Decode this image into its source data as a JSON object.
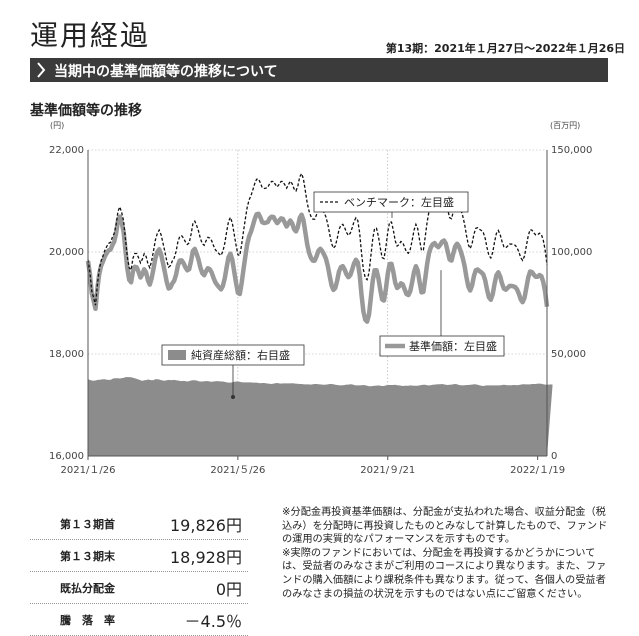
{
  "header": {
    "title": "運用経過",
    "period": "第13期：2021年１月27日～2022年１月26日",
    "banner": "当期中の基準価額等の推移について",
    "section_title": "基準価額等の推移"
  },
  "chart_data": {
    "type": "line",
    "left_axis": {
      "unit": "(円)",
      "ticks": [
        "22,000",
        "20,000",
        "18,000",
        "16,000"
      ],
      "range": [
        16000,
        22000
      ]
    },
    "right_axis": {
      "unit": "(百万円)",
      "ticks": [
        "150,000",
        "100,000",
        "50,000",
        "0"
      ],
      "range": [
        0,
        150000
      ]
    },
    "x_ticks": [
      "2021/１/26",
      "2021/５/26",
      "2021/９/21",
      "2022/１/19"
    ],
    "x_tick_index": [
      0,
      80,
      160,
      240
    ],
    "legend": {
      "benchmark": "ベンチマーク：左目盛",
      "nav": "基準価額：左目盛",
      "assets": "純資産総額：右目盛"
    },
    "series": [
      {
        "name": "基準価額：左目盛",
        "values": [
          19826,
          19570,
          19197,
          19046,
          18887,
          19287,
          19565,
          19728,
          19816,
          19916,
          19979,
          20032,
          20045,
          20136,
          20201,
          20364,
          20617,
          20694,
          20574,
          20400,
          20030,
          19682,
          19455,
          19406,
          19630,
          19710,
          19700,
          19608,
          19500,
          19563,
          19660,
          19600,
          19440,
          19360,
          19491,
          19683,
          19879,
          19996,
          20053,
          19953,
          19790,
          19610,
          19416,
          19284,
          19303,
          19385,
          19438,
          19557,
          19738,
          19834,
          19836,
          19783,
          19700,
          19642,
          19662,
          19818,
          20019,
          20060,
          19963,
          19850,
          19695,
          19585,
          19545,
          19622,
          19683,
          19660,
          19600,
          19494,
          19403,
          19351,
          19307,
          19266,
          19336,
          19488,
          19696,
          19896,
          19967,
          19850,
          19630,
          19400,
          19200,
          19176,
          19385,
          19661,
          19919,
          20152,
          20305,
          20398,
          20521,
          20646,
          20741,
          20750,
          20676,
          20585,
          20568,
          20574,
          20590,
          20658,
          20693,
          20686,
          20622,
          20566,
          20609,
          20658,
          20650,
          20578,
          20500,
          20562,
          20618,
          20559,
          20448,
          20403,
          20489,
          20668,
          20731,
          20628,
          20394,
          20149,
          19985,
          19886,
          19831,
          19829,
          19920,
          20024,
          20062,
          20020,
          19950,
          19870,
          19725,
          19528,
          19343,
          19256,
          19296,
          19441,
          19618,
          19704,
          19722,
          19653,
          19561,
          19505,
          19547,
          19656,
          19775,
          19848,
          19796,
          19548,
          19161,
          18833,
          18670,
          18635,
          18772,
          19111,
          19445,
          19642,
          19644,
          19486,
          19260,
          19070,
          19050,
          19276,
          19576,
          19764,
          19766,
          19601,
          19400,
          19295,
          19324,
          19385,
          19365,
          19273,
          19176,
          19155,
          19227,
          19401,
          19605,
          19721,
          19638,
          19410,
          19208,
          19219,
          19474,
          19759,
          19977,
          20089,
          20151,
          20175,
          20124,
          20097,
          20140,
          20201,
          20226,
          20167,
          20010,
          19852,
          19832,
          19972,
          20109,
          20162,
          20112,
          20010,
          19886,
          19724,
          19512,
          19323,
          19245,
          19344,
          19526,
          19643,
          19656,
          19623,
          19600,
          19560,
          19446,
          19266,
          19111,
          19063,
          19170,
          19370,
          19544,
          19601,
          19518,
          19384,
          19283,
          19261,
          19296,
          19333,
          19336,
          19327,
          19311,
          19268,
          19179,
          19066,
          19015,
          19100,
          19303,
          19503,
          19617,
          19606,
          19552,
          19513,
          19516,
          19547,
          19525,
          19409,
          19222,
          18928
        ]
      },
      {
        "name": "ベンチマーク：左目盛",
        "values": [
          19850,
          19606,
          19244,
          19104,
          18956,
          19366,
          19654,
          19827,
          19924,
          20033,
          20106,
          20168,
          20190,
          20290,
          20364,
          20536,
          20798,
          20884,
          20773,
          20608,
          20247,
          19908,
          19690,
          19649,
          19882,
          19971,
          19970,
          19887,
          19787,
          19859,
          19965,
          19914,
          19763,
          19691,
          19831,
          20032,
          20237,
          20363,
          20429,
          20337,
          20183,
          20012,
          19827,
          19703,
          19731,
          19822,
          19884,
          20012,
          20201,
          20306,
          20317,
          20272,
          20198,
          20149,
          20178,
          20343,
          20553,
          20603,
          20515,
          20411,
          20264,
          20163,
          20132,
          20218,
          20288,
          20274,
          20223,
          20126,
          20043,
          20000,
          19965,
          19933,
          20012,
          20173,
          20390,
          20599,
          20679,
          20571,
          20360,
          20139,
          19948,
          19932,
          20141,
          20406,
          20654,
          20877,
          21021,
          21106,
          21221,
          21339,
          21427,
          21431,
          21354,
          21262,
          21245,
          21253,
          21272,
          21344,
          21384,
          21383,
          21325,
          21276,
          21326,
          21383,
          21384,
          21321,
          21252,
          21323,
          21388,
          21338,
          21236,
          21199,
          21290,
          21472,
          21537,
          21436,
          21204,
          20961,
          20798,
          20700,
          20646,
          20644,
          20736,
          20841,
          20880,
          20839,
          20770,
          20690,
          20546,
          20349,
          20164,
          20077,
          20117,
          20262,
          20439,
          20525,
          20543,
          20474,
          20382,
          20326,
          20368,
          20477,
          20596,
          20669,
          20617,
          20369,
          19982,
          19654,
          19491,
          19456,
          19593,
          19932,
          20266,
          20463,
          20465,
          20307,
          20081,
          19891,
          19871,
          20097,
          20397,
          20585,
          20587,
          20422,
          20221,
          20116,
          20145,
          20206,
          20186,
          20094,
          19997,
          19976,
          20048,
          20222,
          20426,
          20542,
          20459,
          20231,
          20029,
          20040,
          20295,
          20580,
          20798,
          20910,
          20972,
          20996,
          20945,
          20918,
          20961,
          21022,
          21047,
          20988,
          20831,
          20673,
          20653,
          20793,
          20930,
          20983,
          20933,
          20831,
          20707,
          20545,
          20333,
          20144,
          20066,
          20165,
          20347,
          20464,
          20477,
          20444,
          20421,
          20381,
          20267,
          20087,
          19932,
          19884,
          19991,
          20191,
          20365,
          20422,
          20339,
          20205,
          20104,
          20082,
          20117,
          20154,
          20157,
          20148,
          20132,
          20089,
          20000,
          19887,
          19836,
          19921,
          20124,
          20324,
          20438,
          20427,
          20373,
          20334,
          20337,
          20368,
          20346,
          20230,
          20043,
          19749
        ]
      },
      {
        "name": "純資産総額：右目盛",
        "values": [
          37600,
          37300,
          37000,
          36900,
          37000,
          37300,
          37300,
          37500,
          37600,
          37600,
          37400,
          37300,
          37300,
          37800,
          38100,
          38100,
          38100,
          38000,
          38200,
          38300,
          38700,
          38700,
          38700,
          38600,
          38400,
          38100,
          37800,
          37500,
          37100,
          36800,
          37100,
          37200,
          37500,
          37300,
          37100,
          37200,
          37700,
          37600,
          37500,
          37200,
          37000,
          36900,
          37100,
          37300,
          37200,
          37200,
          37300,
          37100,
          37000,
          36800,
          36700,
          36800,
          36700,
          36500,
          36700,
          37000,
          37100,
          37100,
          37000,
          36600,
          36500,
          36500,
          36600,
          36700,
          36700,
          36500,
          36400,
          36500,
          36600,
          36700,
          36600,
          36500,
          36500,
          36300,
          36100,
          36000,
          36000,
          36100,
          36300,
          36500,
          36500,
          36400,
          36200,
          36100,
          36100,
          36100,
          36100,
          36100,
          36000,
          36000,
          36000,
          35800,
          35700,
          35800,
          35800,
          35700,
          35500,
          35400,
          35300,
          35500,
          35700,
          35800,
          35600,
          35500,
          35600,
          35600,
          35600,
          35600,
          35600,
          35700,
          35600,
          35400,
          35400,
          35300,
          35300,
          35200,
          35100,
          35100,
          35100,
          35000,
          35200,
          35300,
          35300,
          35200,
          35100,
          35000,
          34900,
          35000,
          35100,
          35300,
          35300,
          35200,
          34900,
          34800,
          34700,
          34600,
          34700,
          34800,
          35000,
          35000,
          35200,
          35100,
          34800,
          34600,
          34600,
          34600,
          34700,
          34800,
          34700,
          34400,
          34200,
          34200,
          34300,
          34400,
          34500,
          34600,
          34400,
          34300,
          34300,
          34600,
          34800,
          34800,
          34800,
          34800,
          34900,
          34700,
          34600,
          34500,
          34300,
          34400,
          34400,
          34400,
          34600,
          34500,
          34400,
          34400,
          34400,
          34600,
          34800,
          34900,
          34900,
          34700,
          34600,
          34700,
          34900,
          35000,
          35100,
          35200,
          35200,
          35300,
          35100,
          34900,
          34800,
          34900,
          35000,
          35200,
          35300,
          35200,
          34800,
          34700,
          34600,
          34700,
          34800,
          34800,
          34900,
          35000,
          35200,
          35100,
          34900,
          34600,
          34400,
          34300,
          34500,
          34600,
          34600,
          34600,
          34600,
          34600,
          34600,
          34600,
          34600,
          34800,
          34900,
          34800,
          34700,
          34700,
          34700,
          34800,
          34800,
          34700,
          34800,
          35000,
          35200,
          35200,
          35100,
          35100,
          35100,
          35300,
          35300,
          35300,
          35500,
          35500,
          35400,
          35200,
          35000,
          35000,
          35000,
          35100,
          35000
        ]
      }
    ]
  },
  "stats": [
    {
      "label": "第１３期首",
      "value": "19,826円"
    },
    {
      "label": "第１３期末",
      "value": "18,928円"
    },
    {
      "label": "既払分配金",
      "value": "0円"
    },
    {
      "label": "騰　落　率",
      "value": "－4.5％"
    }
  ],
  "notes": [
    "※分配金再投資基準価額は、分配金が支払われた場合、収益分配金（税込み）を分配時に再投資したものとみなして計算したもので、ファンドの運用の実質的なパフォーマンスを示すものです。",
    "※実際のファンドにおいては、分配金を再投資するかどうかについては、受益者のみなさまがご利用のコースにより異なります。また、ファンドの購入価額により課税条件も異なります。従って、各個人の受益者のみなさまの損益の状況を示すものではない点にご留意ください。"
  ]
}
